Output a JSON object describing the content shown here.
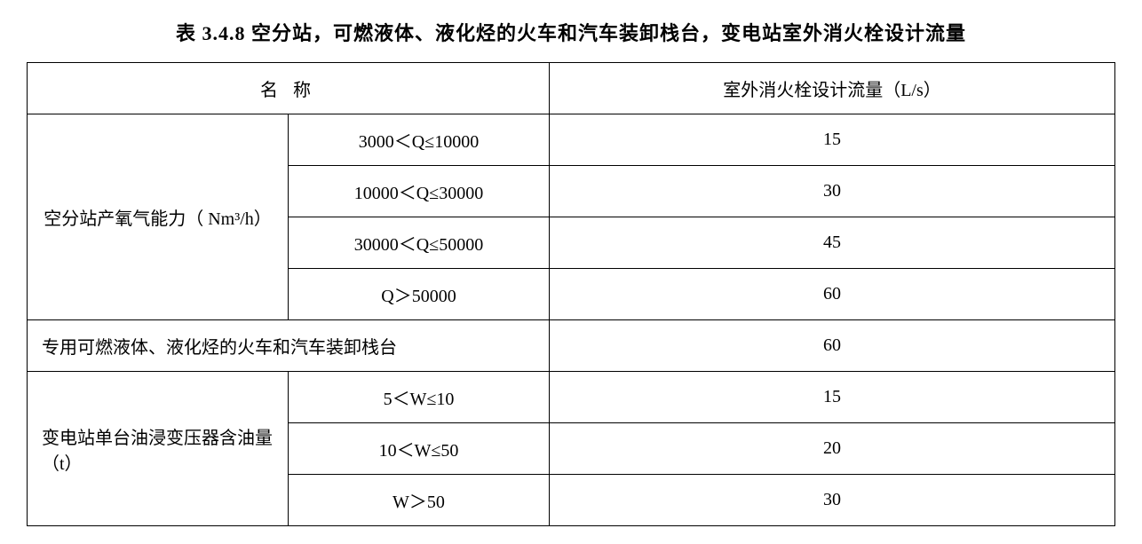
{
  "title": "表 3.4.8 空分站，可燃液体、液化烃的火车和汽车装卸栈台，变电站室外消火栓设计流量",
  "headers": {
    "name": "名 称",
    "flow": "室外消火栓设计流量（L/s）"
  },
  "section1": {
    "label": "空分站产氧气能力（ Nm³/h）",
    "rows": [
      {
        "range": "3000＜Q≤10000",
        "value": "15"
      },
      {
        "range": "10000＜Q≤30000",
        "value": "30"
      },
      {
        "range": "30000＜Q≤50000",
        "value": "45"
      },
      {
        "range": "Q＞50000",
        "value": "60"
      }
    ]
  },
  "section2": {
    "label": "专用可燃液体、液化烃的火车和汽车装卸栈台",
    "value": "60"
  },
  "section3": {
    "label": "变电站单台油浸变压器含油量（t）",
    "rows": [
      {
        "range": "5＜W≤10",
        "value": "15"
      },
      {
        "range": "10＜W≤50",
        "value": "20"
      },
      {
        "range": "W＞50",
        "value": "30"
      }
    ]
  },
  "style": {
    "border_color": "#000000",
    "background_color": "#ffffff",
    "text_color": "#000000",
    "title_fontsize": 22,
    "cell_fontsize": 20,
    "font_family": "SimSun"
  }
}
